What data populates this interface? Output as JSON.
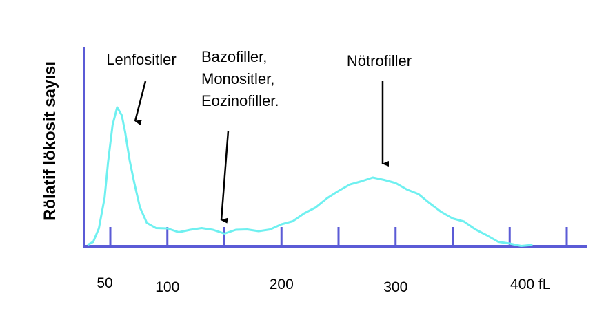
{
  "chart_data": {
    "type": "line",
    "ylabel": "Rölatif  lökosit  sayısı",
    "xlabel": "",
    "x_tick_labels": [
      {
        "x": 50,
        "label": "50"
      },
      {
        "x": 100,
        "label": "100"
      },
      {
        "x": 200,
        "label": "200"
      },
      {
        "x": 300,
        "label": "300"
      },
      {
        "x": 400,
        "label": "400 fL"
      }
    ],
    "x_ticks": [
      50,
      100,
      150,
      200,
      250,
      300,
      350,
      400,
      450
    ],
    "xlim": [
      30,
      465
    ],
    "ylim": [
      0,
      1.2
    ],
    "grid": false,
    "line_color": "#6FF0F0",
    "axis_color": "#5B5BD6",
    "series": [
      {
        "points": [
          [
            30,
            0.0
          ],
          [
            35,
            0.03
          ],
          [
            40,
            0.12
          ],
          [
            45,
            0.35
          ],
          [
            48,
            0.6
          ],
          [
            52,
            0.88
          ],
          [
            56,
            1.0
          ],
          [
            60,
            0.95
          ],
          [
            63,
            0.82
          ],
          [
            67,
            0.62
          ],
          [
            71,
            0.45
          ],
          [
            76,
            0.28
          ],
          [
            82,
            0.16
          ],
          [
            90,
            0.13
          ],
          [
            100,
            0.12
          ],
          [
            110,
            0.1
          ],
          [
            120,
            0.11
          ],
          [
            130,
            0.13
          ],
          [
            140,
            0.11
          ],
          [
            150,
            0.09
          ],
          [
            160,
            0.11
          ],
          [
            170,
            0.12
          ],
          [
            180,
            0.1
          ],
          [
            190,
            0.12
          ],
          [
            200,
            0.15
          ],
          [
            210,
            0.18
          ],
          [
            220,
            0.23
          ],
          [
            230,
            0.28
          ],
          [
            240,
            0.34
          ],
          [
            250,
            0.4
          ],
          [
            260,
            0.44
          ],
          [
            270,
            0.47
          ],
          [
            280,
            0.49
          ],
          [
            290,
            0.48
          ],
          [
            300,
            0.45
          ],
          [
            310,
            0.41
          ],
          [
            320,
            0.37
          ],
          [
            330,
            0.31
          ],
          [
            340,
            0.24
          ],
          [
            350,
            0.2
          ],
          [
            360,
            0.17
          ],
          [
            370,
            0.12
          ],
          [
            380,
            0.07
          ],
          [
            390,
            0.03
          ],
          [
            400,
            0.01
          ],
          [
            410,
            0.0
          ],
          [
            420,
            0.0
          ]
        ]
      }
    ],
    "annotations": [
      {
        "lines": [
          "Lenfositler"
        ],
        "points_to_x": 62
      },
      {
        "lines": [
          "Bazofiller,",
          "Monositler,",
          "Eozinofiller."
        ],
        "points_to_x": 150
      },
      {
        "lines": [
          "Nötrofiller"
        ],
        "points_to_x": 288
      }
    ]
  }
}
